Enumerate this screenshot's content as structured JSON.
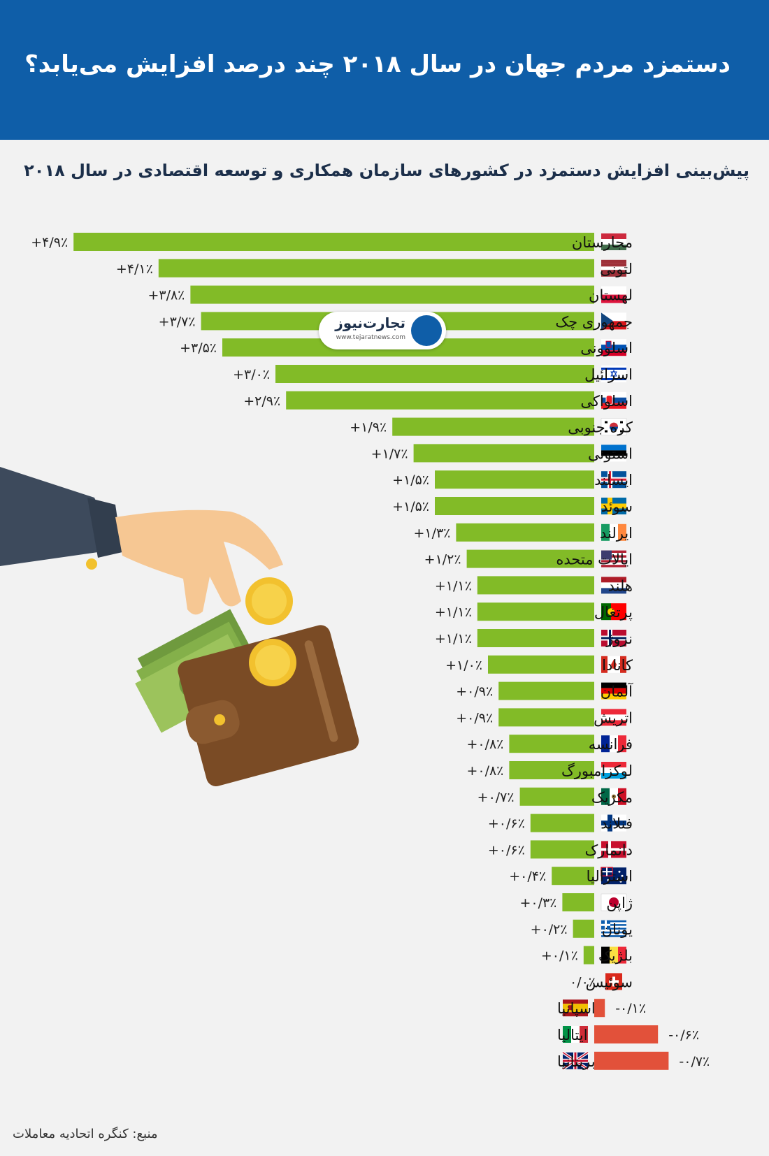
{
  "header": {
    "title": "دستمزد مردم جهان در سال ۲۰۱۸ چند درصد افزایش می‌یابد؟"
  },
  "watermark": {
    "name": "تجارت‌نیوز",
    "site": "www.tejaratnews.com"
  },
  "source": "منبع: کنگره اتحادیه معاملات",
  "colors": {
    "header": "#0f5ea8",
    "positive": "#82bb27",
    "negative": "#e2513a",
    "background": "#f2f2f2"
  },
  "chart_data": {
    "type": "bar",
    "orientation": "horizontal",
    "title": "پیش‌بینی افزایش دستمزد در کشورهای سازمان همکاری و توسعه اقتصادی در سال ۲۰۱۸",
    "unit": "%",
    "categories": [
      "مجارستان",
      "لتونی",
      "لهستان",
      "جمهوری چک",
      "اسلوونی",
      "اسرائیل",
      "اسلواکی",
      "کره جنوبی",
      "استونی",
      "ایسلند",
      "سوئد",
      "ایرلند",
      "ایالات متحده",
      "هلند",
      "پرتغال",
      "نروژ",
      "کانادا",
      "آلمان",
      "اتریش",
      "فرانسه",
      "لوکزامبورگ",
      "مکزیک",
      "فنلاند",
      "دانمارک",
      "استرالیا",
      "ژاپن",
      "یونان",
      "بلژیک",
      "سوئیس",
      "اسپانیا",
      "ایتالیا",
      "بریتانیا"
    ],
    "values": [
      4.9,
      4.1,
      3.8,
      3.7,
      3.5,
      3.0,
      2.9,
      1.9,
      1.7,
      1.5,
      1.5,
      1.3,
      1.2,
      1.1,
      1.1,
      1.1,
      1.0,
      0.9,
      0.9,
      0.8,
      0.8,
      0.7,
      0.6,
      0.6,
      0.4,
      0.3,
      0.2,
      0.1,
      0.0,
      -0.1,
      -0.6,
      -0.7
    ],
    "labels": [
      "+۴/۹٪",
      "+۴/۱٪",
      "+۳/۸٪",
      "+۳/۷٪",
      "+۳/۵٪",
      "+۳/۰٪",
      "+۲/۹٪",
      "+۱/۹٪",
      "+۱/۷٪",
      "+۱/۵٪",
      "+۱/۵٪",
      "+۱/۳٪",
      "+۱/۲٪",
      "+۱/۱٪",
      "+۱/۱٪",
      "+۱/۱٪",
      "+۱/۰٪",
      "+۰/۹٪",
      "+۰/۹٪",
      "+۰/۸٪",
      "+۰/۸٪",
      "+۰/۷٪",
      "+۰/۶٪",
      "+۰/۶٪",
      "+۰/۴٪",
      "+۰/۳٪",
      "+۰/۲٪",
      "+۰/۱٪",
      "۰/۰٪",
      "-۰/۱٪",
      "-۰/۶٪",
      "-۰/۷٪"
    ],
    "flags": [
      "hungary",
      "latvia",
      "poland",
      "czech",
      "slovenia",
      "israel",
      "slovakia",
      "south-korea",
      "estonia",
      "iceland",
      "sweden",
      "ireland",
      "usa",
      "netherlands",
      "portugal",
      "norway",
      "canada",
      "germany",
      "austria",
      "france",
      "luxembourg",
      "mexico",
      "finland",
      "denmark",
      "australia",
      "japan",
      "greece",
      "belgium",
      "switzerland",
      "spain",
      "italy",
      "uk"
    ],
    "grid": false,
    "legend": "none"
  }
}
